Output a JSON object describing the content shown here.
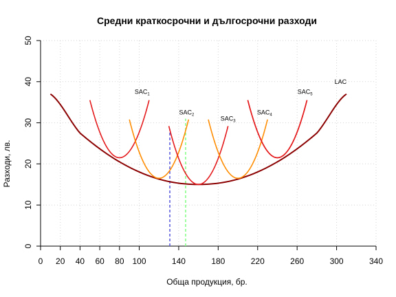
{
  "chart_data": {
    "type": "line",
    "title": "Средни краткосрочни и дългосрочни разходи",
    "xlabel": "Обща продукция, бр.",
    "ylabel": "Разходи, лв.",
    "xlim": [
      0,
      340
    ],
    "ylim": [
      0,
      50
    ],
    "x_ticks": [
      0,
      20,
      40,
      60,
      80,
      100,
      140,
      180,
      220,
      260,
      300,
      340
    ],
    "y_ticks": [
      0,
      10,
      20,
      30,
      40,
      50
    ],
    "grid": true,
    "colors": {
      "lac": "#8b0000",
      "sac_red": "#e41a1c",
      "sac_orange": "#ff8c00",
      "vline_blue": "#5555dd",
      "vline_green": "#7fff7f",
      "grid": "#d3d3d3"
    },
    "lac": {
      "name": "LAC",
      "x": [
        10,
        40,
        80,
        120,
        160,
        200,
        240,
        280,
        310
      ],
      "y": [
        37,
        27.5,
        20.5,
        16.3,
        15.0,
        16.3,
        20.5,
        27.5,
        37
      ],
      "label": "LAC"
    },
    "sac_curves": [
      {
        "name": "SAC",
        "sub": "1",
        "color": "sac_red",
        "min_x": 80,
        "min_y": 21.5,
        "x_from": 50,
        "x_to": 110,
        "label_x": 103,
        "label_y": 37
      },
      {
        "name": "",
        "sub": "",
        "color": "sac_orange",
        "min_x": 120,
        "min_y": 16.5,
        "x_from": 90,
        "x_to": 150,
        "label_x": null,
        "label_y": null
      },
      {
        "name": "SAC",
        "sub": "2",
        "color": "sac_red",
        "min_x": 160,
        "min_y": 15.0,
        "x_from": 130,
        "x_to": 190,
        "label_x": 148,
        "label_y": 32
      },
      {
        "name": "SAC",
        "sub": "3",
        "color": "sac_orange",
        "min_x": 200,
        "min_y": 16.5,
        "x_from": 170,
        "x_to": 230,
        "label_x": 190,
        "label_y": 30.5
      },
      {
        "name": "SAC",
        "sub": "4",
        "color": "sac_red",
        "min_x": 240,
        "min_y": 21.5,
        "x_from": 210,
        "x_to": 270,
        "label_x": 227,
        "label_y": 32
      },
      {
        "name": "SAC",
        "sub": "5",
        "color": "sac_red",
        "min_x": 240,
        "min_y": 21.5,
        "x_from": 210,
        "x_to": 270,
        "label_x": 268,
        "label_y": 37
      }
    ],
    "vlines": [
      {
        "x": 131,
        "y_top": 28.5,
        "color": "vline_blue"
      },
      {
        "x": 147,
        "y_top": 31,
        "color": "vline_green"
      }
    ]
  }
}
